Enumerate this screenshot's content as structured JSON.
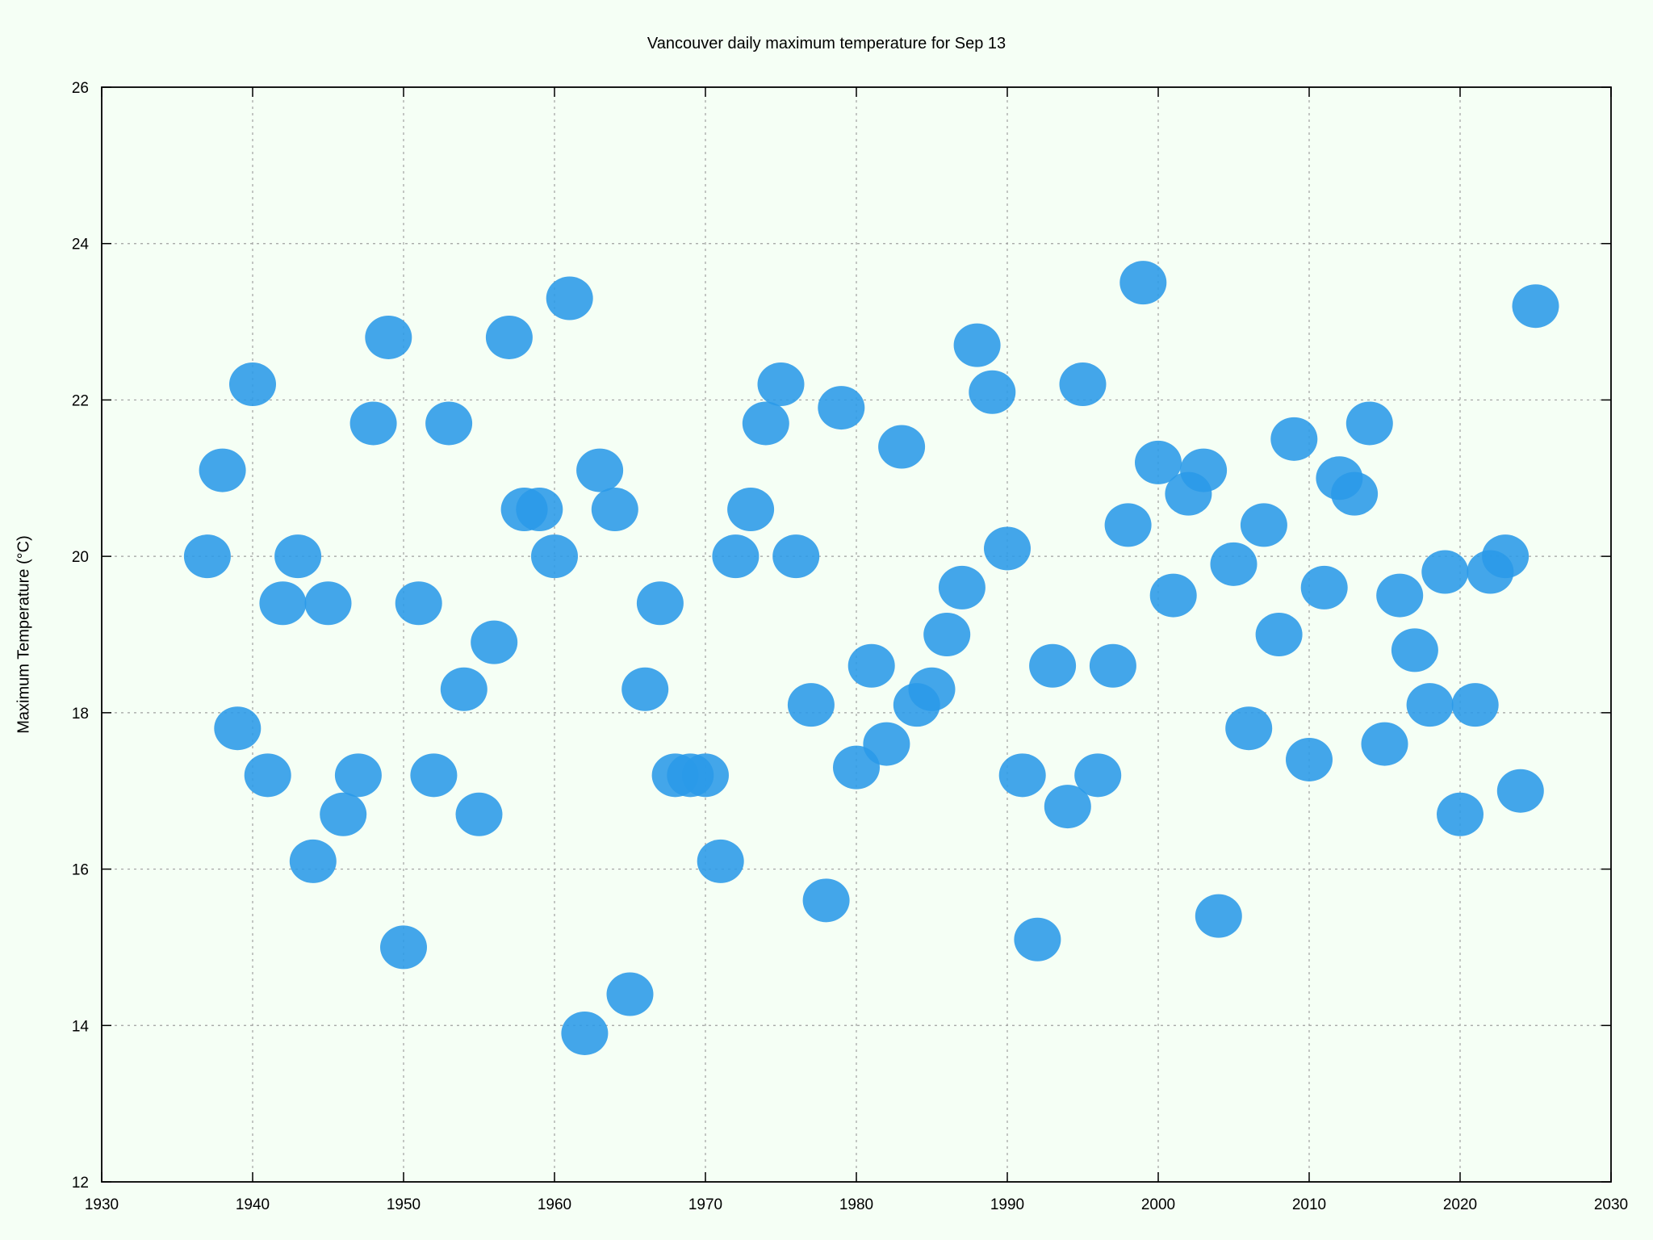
{
  "chart_data": {
    "type": "scatter",
    "title": "Vancouver daily maximum temperature for Sep 13",
    "xlabel": "",
    "ylabel": "Maximum Temperature (°C)",
    "xlim": [
      1930,
      2030
    ],
    "ylim": [
      12,
      26
    ],
    "x_ticks": [
      1930,
      1940,
      1950,
      1960,
      1970,
      1980,
      1990,
      2000,
      2010,
      2020,
      2030
    ],
    "y_ticks": [
      12,
      14,
      16,
      18,
      20,
      22,
      24,
      26
    ],
    "grid": true,
    "point_color": "#2a9ae8",
    "background_color": "#f5fff5",
    "x": [
      1937,
      1938,
      1939,
      1940,
      1941,
      1942,
      1943,
      1944,
      1945,
      1946,
      1947,
      1948,
      1949,
      1950,
      1951,
      1952,
      1953,
      1954,
      1955,
      1956,
      1957,
      1958,
      1959,
      1960,
      1961,
      1962,
      1963,
      1964,
      1965,
      1966,
      1967,
      1968,
      1969,
      1970,
      1971,
      1972,
      1973,
      1974,
      1975,
      1976,
      1977,
      1978,
      1979,
      1980,
      1981,
      1982,
      1983,
      1984,
      1985,
      1986,
      1987,
      1988,
      1989,
      1990,
      1991,
      1992,
      1993,
      1994,
      1995,
      1996,
      1997,
      1998,
      1999,
      2000,
      2001,
      2002,
      2003,
      2004,
      2005,
      2006,
      2007,
      2008,
      2009,
      2010,
      2011,
      2012,
      2013,
      2014,
      2015,
      2016,
      2017,
      2018,
      2019,
      2020,
      2021,
      2022,
      2023,
      2024,
      2025
    ],
    "y": [
      20.0,
      21.1,
      17.8,
      22.2,
      17.2,
      19.4,
      20.0,
      16.1,
      19.4,
      16.7,
      17.2,
      21.7,
      22.8,
      15.0,
      19.4,
      17.2,
      21.7,
      18.3,
      16.7,
      18.9,
      22.8,
      20.6,
      20.6,
      20.0,
      23.3,
      13.9,
      21.1,
      20.6,
      14.4,
      18.3,
      19.4,
      17.2,
      17.2,
      17.2,
      16.1,
      20.0,
      20.6,
      21.7,
      22.2,
      20.0,
      18.1,
      15.6,
      21.9,
      17.3,
      18.6,
      17.6,
      21.4,
      18.1,
      18.3,
      19.0,
      19.6,
      22.7,
      22.1,
      20.1,
      17.2,
      15.1,
      18.6,
      16.8,
      22.2,
      17.2,
      18.6,
      20.4,
      23.5,
      21.2,
      19.5,
      20.8,
      21.1,
      15.4,
      19.9,
      17.8,
      20.4,
      19.0,
      21.5,
      17.4,
      19.6,
      21.0,
      20.8,
      21.7,
      17.6,
      19.5,
      18.8,
      18.1,
      19.8,
      16.7,
      18.1,
      19.8,
      20.0,
      17.0,
      23.2
    ]
  }
}
